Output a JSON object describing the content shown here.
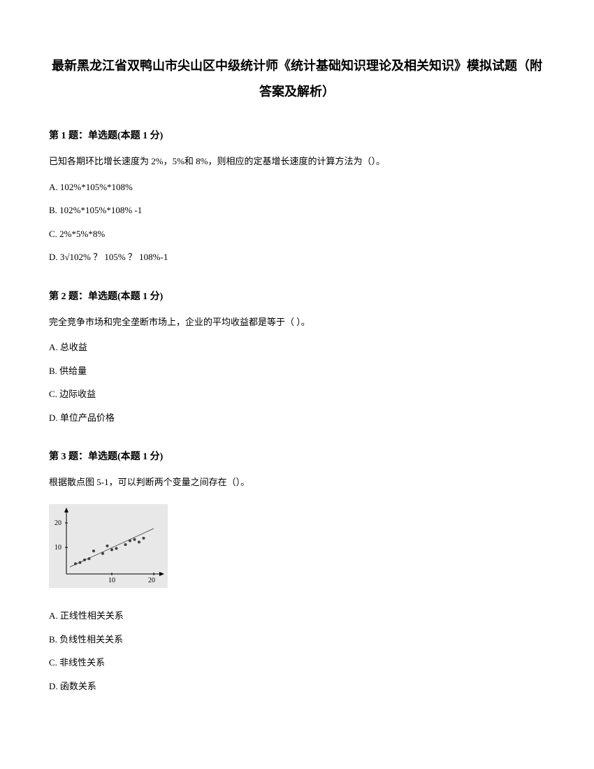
{
  "title_line1": "最新黑龙江省双鸭山市尖山区中级统计师《统计基础知识理论及相关知识》模拟试题（附",
  "title_line2": "答案及解析）",
  "questions": [
    {
      "header": "第 1 题：单选题(本题 1 分)",
      "text": "已知各期环比增长速度为 2%，5%和 8%，则相应的定基增长速度的计算方法为（）。",
      "options": [
        "A. 102%*105%*108%",
        "B. 102%*105%*108% -1",
        "C. 2%*5%*8%",
        "D. 3√102% ？ 105% ？ 108%-1"
      ]
    },
    {
      "header": "第 2 题：单选题(本题 1 分)",
      "text": "完全竞争市场和完全垄断市场上，企业的平均收益都是等于（ ）。",
      "options": [
        "A. 总收益",
        "B. 供给量",
        "C. 边际收益",
        "D. 单位产品价格"
      ]
    },
    {
      "header": "第 3 题：单选题(本题 1 分)",
      "text": "根据散点图 5-1，可以判断两个变量之间存在（）。",
      "options": [
        "A. 正线性相关关系",
        "B. 负线性相关关系",
        "C. 非线性关系",
        "D. 函数关系"
      ]
    }
  ],
  "scatter": {
    "width": 170,
    "height": 120,
    "background": "#e8e8e8",
    "axis_color": "#000000",
    "point_color": "#404040",
    "line_color": "#606060",
    "y_ticks": [
      "20",
      "10"
    ],
    "x_ticks": [
      "10",
      "20"
    ],
    "points": [
      {
        "x": 2,
        "y": 4
      },
      {
        "x": 3,
        "y": 4.5
      },
      {
        "x": 4,
        "y": 5.5
      },
      {
        "x": 5,
        "y": 6
      },
      {
        "x": 6,
        "y": 9
      },
      {
        "x": 8,
        "y": 8
      },
      {
        "x": 9,
        "y": 11
      },
      {
        "x": 10,
        "y": 9.5
      },
      {
        "x": 11,
        "y": 10
      },
      {
        "x": 13,
        "y": 11.5
      },
      {
        "x": 14,
        "y": 13
      },
      {
        "x": 15,
        "y": 13.5
      },
      {
        "x": 16,
        "y": 12.5
      },
      {
        "x": 17,
        "y": 14
      }
    ]
  }
}
